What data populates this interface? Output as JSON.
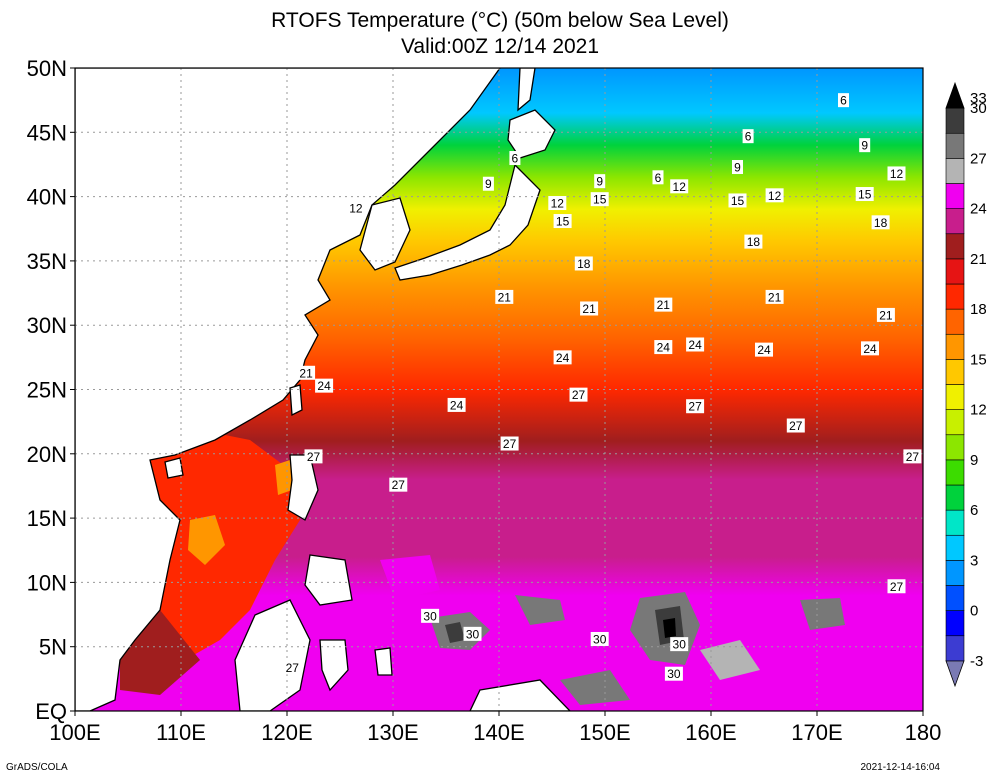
{
  "title": {
    "line1": "RTOFS Temperature (°C) (50m below Sea Level)",
    "line2": "Valid:00Z 12/14 2021"
  },
  "footer": {
    "left": "GrADS/COLA",
    "right": "2021-12-14-16:04"
  },
  "map": {
    "lat_range": [
      0,
      50
    ],
    "lon_range": [
      100,
      180
    ],
    "lat_ticks": [
      {
        "value": 50,
        "label": "50N"
      },
      {
        "value": 45,
        "label": "45N"
      },
      {
        "value": 40,
        "label": "40N"
      },
      {
        "value": 35,
        "label": "35N"
      },
      {
        "value": 30,
        "label": "30N"
      },
      {
        "value": 25,
        "label": "25N"
      },
      {
        "value": 20,
        "label": "20N"
      },
      {
        "value": 15,
        "label": "15N"
      },
      {
        "value": 10,
        "label": "10N"
      },
      {
        "value": 5,
        "label": "5N"
      },
      {
        "value": 0,
        "label": "EQ"
      }
    ],
    "lon_ticks": [
      {
        "value": 100,
        "label": "100E"
      },
      {
        "value": 110,
        "label": "110E"
      },
      {
        "value": 120,
        "label": "120E"
      },
      {
        "value": 130,
        "label": "130E"
      },
      {
        "value": 140,
        "label": "140E"
      },
      {
        "value": 150,
        "label": "150E"
      },
      {
        "value": 160,
        "label": "160E"
      },
      {
        "value": 170,
        "label": "170E"
      },
      {
        "value": 180,
        "label": "180"
      }
    ],
    "grid": true
  },
  "colorbar": {
    "colors": [
      "#7a7ab4",
      "#3c3cd2",
      "#0000ff",
      "#0050ff",
      "#0096ff",
      "#00c8ff",
      "#00e6c8",
      "#00d23c",
      "#3cdc00",
      "#8ce600",
      "#c8f000",
      "#f0f000",
      "#ffc800",
      "#ff9600",
      "#ff6400",
      "#ff2800",
      "#e61414",
      "#a01e1e",
      "#c81e8c",
      "#f000f0",
      "#b4b4b4",
      "#787878",
      "#3c3c3c",
      "#000000"
    ],
    "label_values": [
      -3,
      0,
      3,
      6,
      9,
      12,
      15,
      18,
      21,
      24,
      27,
      30,
      33
    ],
    "labels": [
      "-3",
      "0",
      "3",
      "6",
      "9",
      "12",
      "15",
      "18",
      "21",
      "24",
      "27",
      "30",
      "33"
    ]
  },
  "contour_labels": [
    {
      "text": "6",
      "lon": 172.5,
      "lat": 47.5
    },
    {
      "text": "6",
      "lon": 163.5,
      "lat": 44.7
    },
    {
      "text": "6",
      "lon": 141.5,
      "lat": 43.0
    },
    {
      "text": "6",
      "lon": 155.0,
      "lat": 41.5
    },
    {
      "text": "9",
      "lon": 162.5,
      "lat": 42.3
    },
    {
      "text": "9",
      "lon": 174.5,
      "lat": 44.0
    },
    {
      "text": "9",
      "lon": 139.0,
      "lat": 41.0
    },
    {
      "text": "9",
      "lon": 149.5,
      "lat": 41.2
    },
    {
      "text": "12",
      "lon": 177.5,
      "lat": 41.8
    },
    {
      "text": "12",
      "lon": 157.0,
      "lat": 40.8
    },
    {
      "text": "12",
      "lon": 166.0,
      "lat": 40.1
    },
    {
      "text": "12",
      "lon": 145.5,
      "lat": 39.5
    },
    {
      "text": "12",
      "lon": 126.5,
      "lat": 39.1
    },
    {
      "text": "15",
      "lon": 174.5,
      "lat": 40.2
    },
    {
      "text": "15",
      "lon": 162.5,
      "lat": 39.7
    },
    {
      "text": "15",
      "lon": 149.5,
      "lat": 39.8
    },
    {
      "text": "15",
      "lon": 146.0,
      "lat": 38.1
    },
    {
      "text": "18",
      "lon": 176.0,
      "lat": 38.0
    },
    {
      "text": "18",
      "lon": 164.0,
      "lat": 36.5
    },
    {
      "text": "18",
      "lon": 148.0,
      "lat": 34.8
    },
    {
      "text": "21",
      "lon": 140.5,
      "lat": 32.2
    },
    {
      "text": "21",
      "lon": 148.5,
      "lat": 31.3
    },
    {
      "text": "21",
      "lon": 155.5,
      "lat": 31.6
    },
    {
      "text": "21",
      "lon": 166.0,
      "lat": 32.2
    },
    {
      "text": "21",
      "lon": 176.5,
      "lat": 30.8
    },
    {
      "text": "21",
      "lon": 121.8,
      "lat": 26.3
    },
    {
      "text": "24",
      "lon": 146.0,
      "lat": 27.5
    },
    {
      "text": "24",
      "lon": 155.5,
      "lat": 28.3
    },
    {
      "text": "24",
      "lon": 158.5,
      "lat": 28.5
    },
    {
      "text": "24",
      "lon": 165.0,
      "lat": 28.1
    },
    {
      "text": "24",
      "lon": 175.0,
      "lat": 28.2
    },
    {
      "text": "24",
      "lon": 123.5,
      "lat": 25.3
    },
    {
      "text": "24",
      "lon": 136.0,
      "lat": 23.8
    },
    {
      "text": "27",
      "lon": 147.5,
      "lat": 24.6
    },
    {
      "text": "27",
      "lon": 158.5,
      "lat": 23.7
    },
    {
      "text": "27",
      "lon": 168.0,
      "lat": 22.2
    },
    {
      "text": "27",
      "lon": 141.0,
      "lat": 20.8
    },
    {
      "text": "27",
      "lon": 122.5,
      "lat": 19.8
    },
    {
      "text": "27",
      "lon": 179.0,
      "lat": 19.8
    },
    {
      "text": "27",
      "lon": 130.5,
      "lat": 17.6
    },
    {
      "text": "27",
      "lon": 177.5,
      "lat": 9.7
    },
    {
      "text": "27",
      "lon": 120.5,
      "lat": 3.4
    },
    {
      "text": "30",
      "lon": 133.5,
      "lat": 7.4
    },
    {
      "text": "30",
      "lon": 137.5,
      "lat": 6.0
    },
    {
      "text": "30",
      "lon": 149.5,
      "lat": 5.6
    },
    {
      "text": "30",
      "lon": 157.0,
      "lat": 5.2
    },
    {
      "text": "30",
      "lon": 156.5,
      "lat": 2.9
    }
  ]
}
